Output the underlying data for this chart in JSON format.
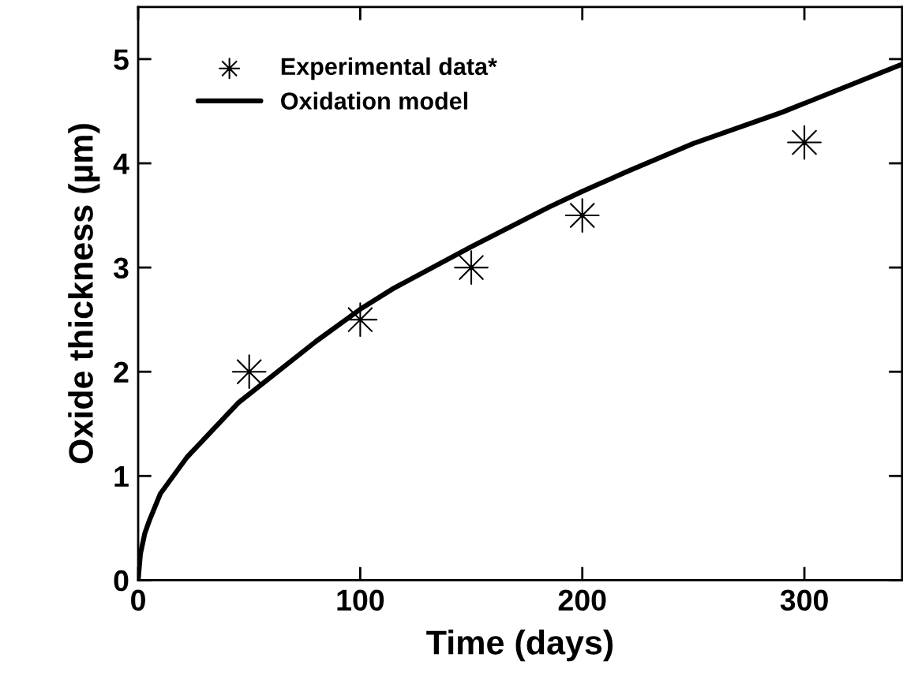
{
  "chart_data": {
    "type": "line",
    "xlabel": "Time (days)",
    "ylabel": "Oxide thickness (µm)",
    "xlim": [
      0,
      344
    ],
    "ylim": [
      0,
      5.5
    ],
    "xticks": [
      0,
      100,
      200,
      300
    ],
    "yticks": [
      0,
      1,
      2,
      3,
      4,
      5
    ],
    "grid": false,
    "legend": "top left",
    "series": [
      {
        "name": "Experimental data*",
        "type": "scatter",
        "color": "#000000",
        "marker": "star",
        "x": [
          50,
          100,
          150,
          200,
          300
        ],
        "values": [
          2.0,
          2.5,
          3.0,
          3.5,
          4.2
        ]
      },
      {
        "name": "Oxidation model",
        "color": "#000000",
        "marker": "none",
        "line_style": "solid",
        "x": [
          0,
          1,
          3,
          5,
          10,
          22,
          45,
          80,
          100,
          115,
          150,
          185,
          200,
          220,
          250,
          290,
          344
        ],
        "values": [
          0,
          0.25,
          0.45,
          0.57,
          0.83,
          1.18,
          1.7,
          2.29,
          2.6,
          2.8,
          3.2,
          3.58,
          3.73,
          3.92,
          4.19,
          4.49,
          4.95
        ]
      }
    ]
  }
}
